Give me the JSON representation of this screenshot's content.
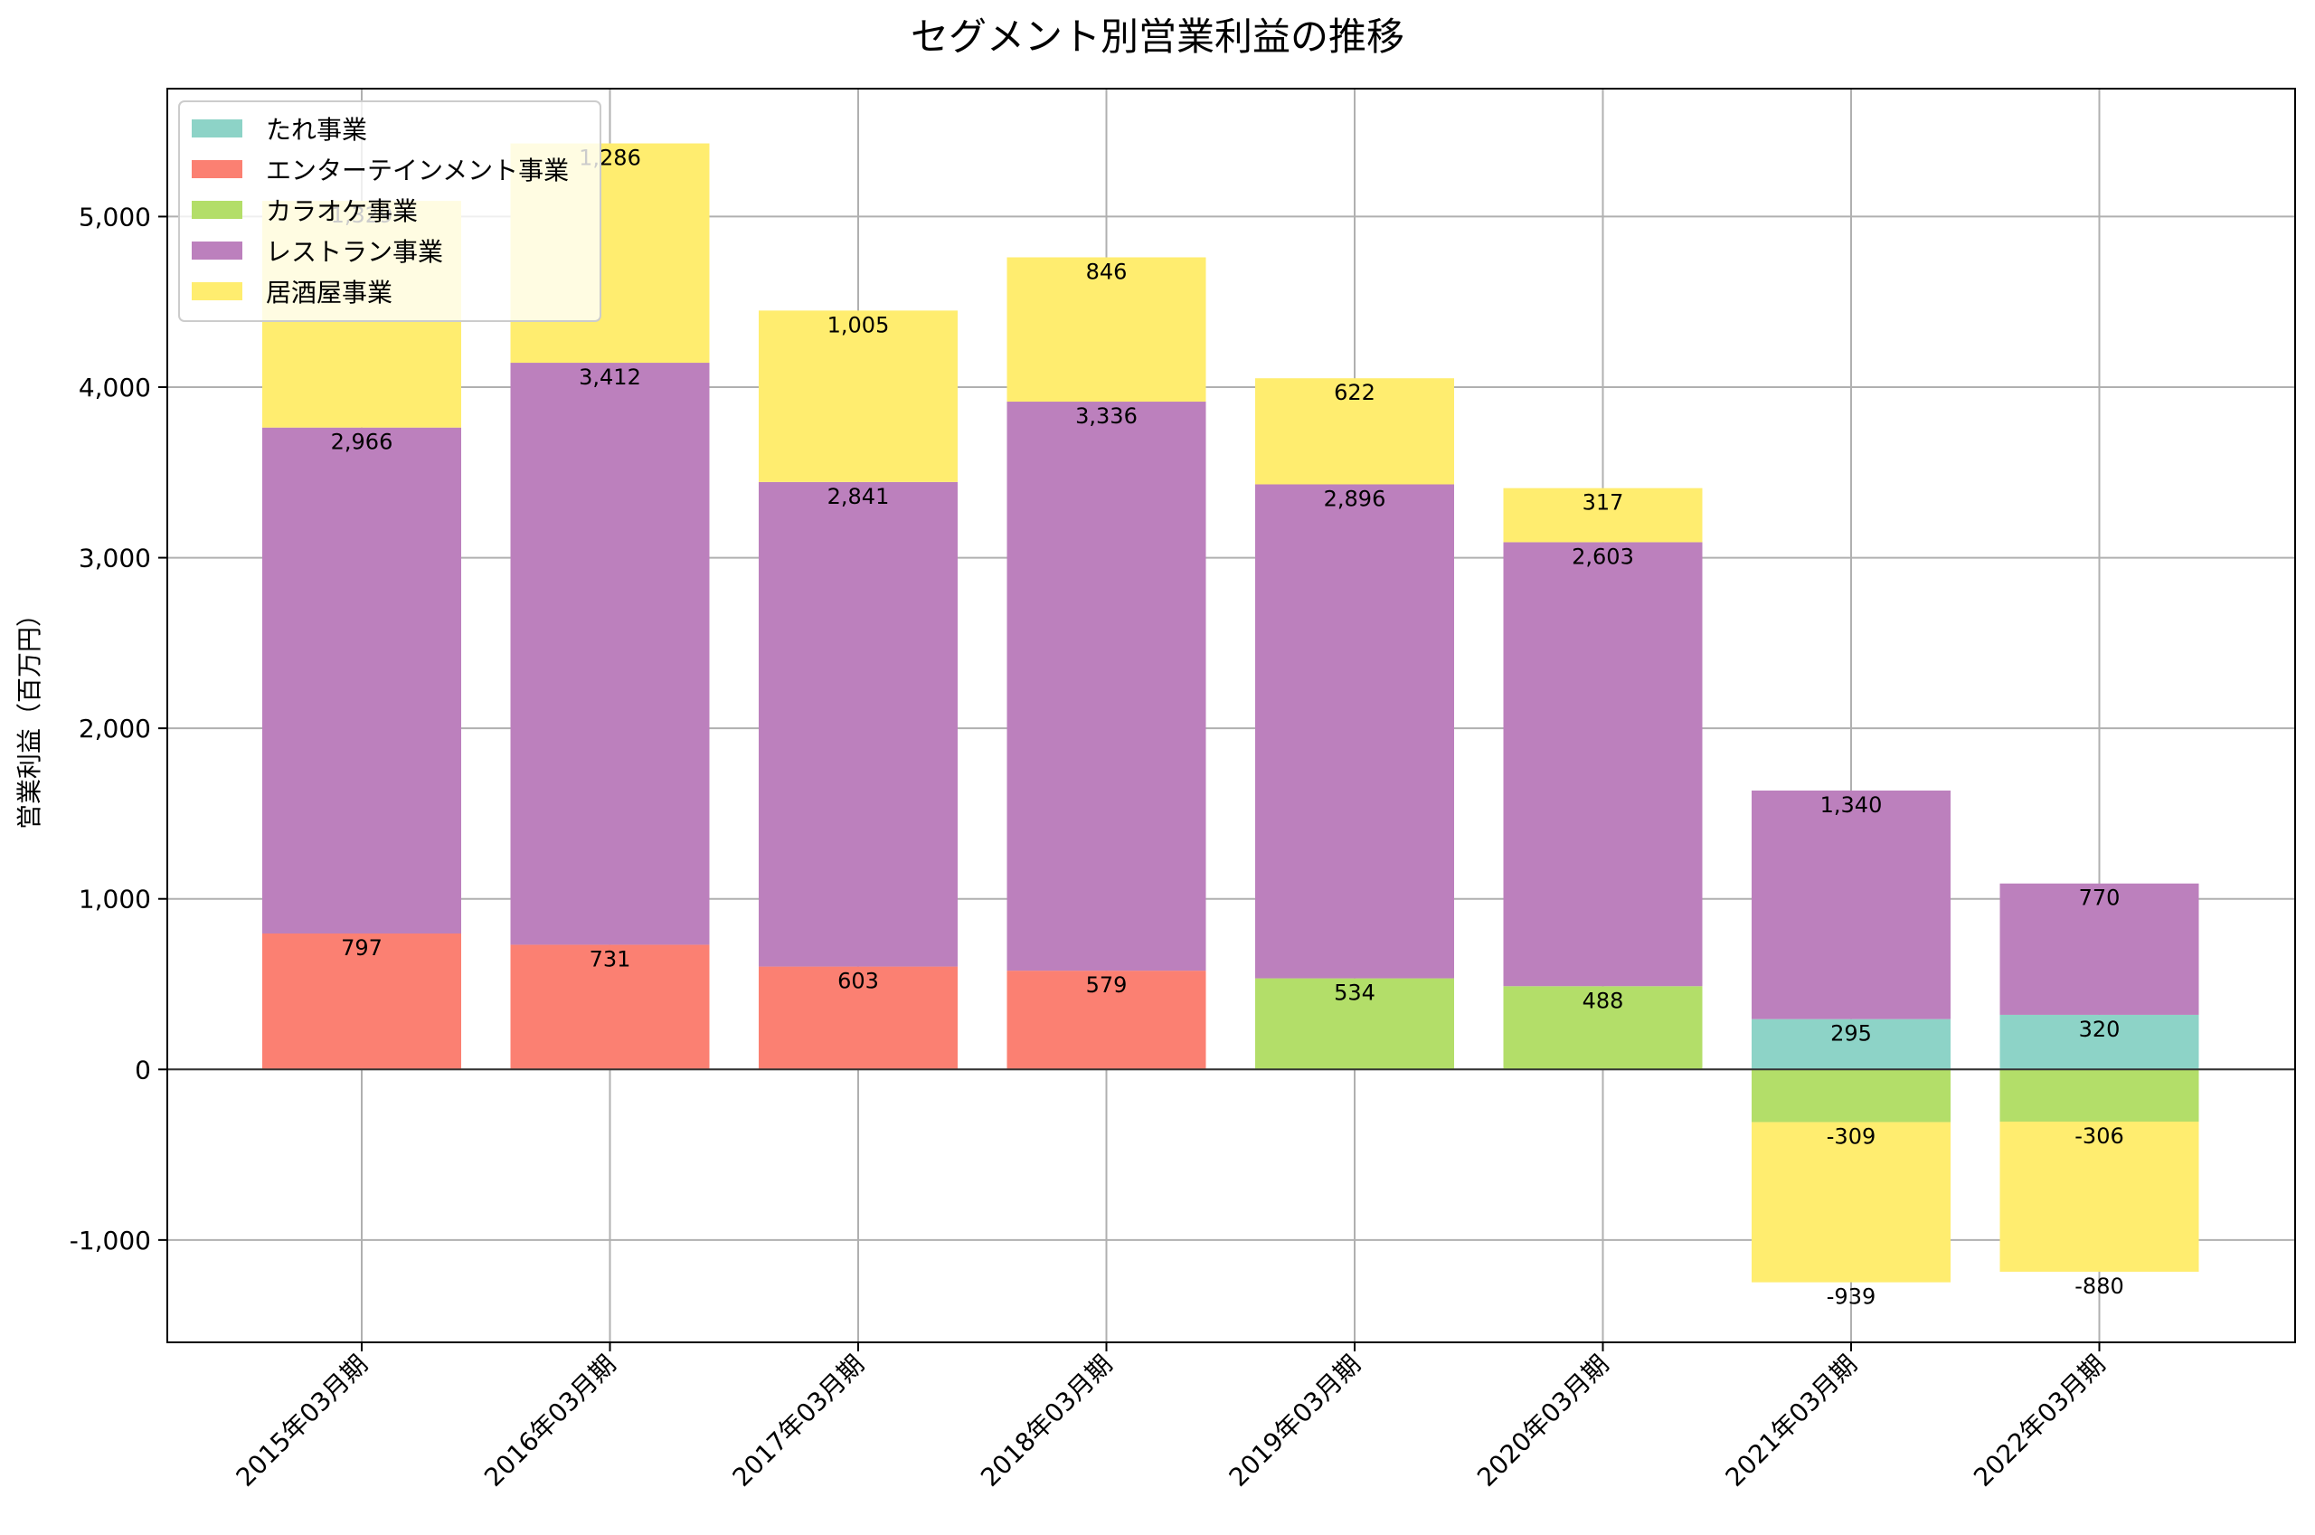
{
  "chart_data": {
    "type": "bar",
    "stacked": true,
    "title": "セグメント別営業利益の推移",
    "xlabel": "",
    "ylabel": "営業利益（百万円）",
    "ylim": [
      -1600,
      5750
    ],
    "yticks": [
      -1000,
      0,
      1000,
      2000,
      3000,
      4000,
      5000
    ],
    "ytick_labels": [
      "-1,000",
      "0",
      "1,000",
      "2,000",
      "3,000",
      "4,000",
      "5,000"
    ],
    "grid": true,
    "legend_position": "upper-left",
    "categories": [
      "2015年03月期",
      "2016年03月期",
      "2017年03月期",
      "2018年03月期",
      "2019年03月期",
      "2020年03月期",
      "2021年03月期",
      "2022年03月期"
    ],
    "series": [
      {
        "name": "たれ事業",
        "color": "#8dd3c7",
        "values": [
          0,
          0,
          0,
          0,
          0,
          0,
          295,
          320
        ]
      },
      {
        "name": "エンターテインメント事業",
        "color": "#fb8072",
        "values": [
          797,
          731,
          603,
          579,
          0,
          0,
          0,
          0
        ]
      },
      {
        "name": "カラオケ事業",
        "color": "#b3de69",
        "values": [
          0,
          0,
          0,
          0,
          534,
          488,
          -309,
          -306
        ]
      },
      {
        "name": "レストラン事業",
        "color": "#bc80bd",
        "values": [
          2966,
          3412,
          2841,
          3336,
          2896,
          2603,
          1340,
          770
        ]
      },
      {
        "name": "居酒屋事業",
        "color": "#ffed6f",
        "values": [
          1329,
          1286,
          1005,
          846,
          622,
          317,
          -939,
          -880
        ]
      }
    ]
  }
}
